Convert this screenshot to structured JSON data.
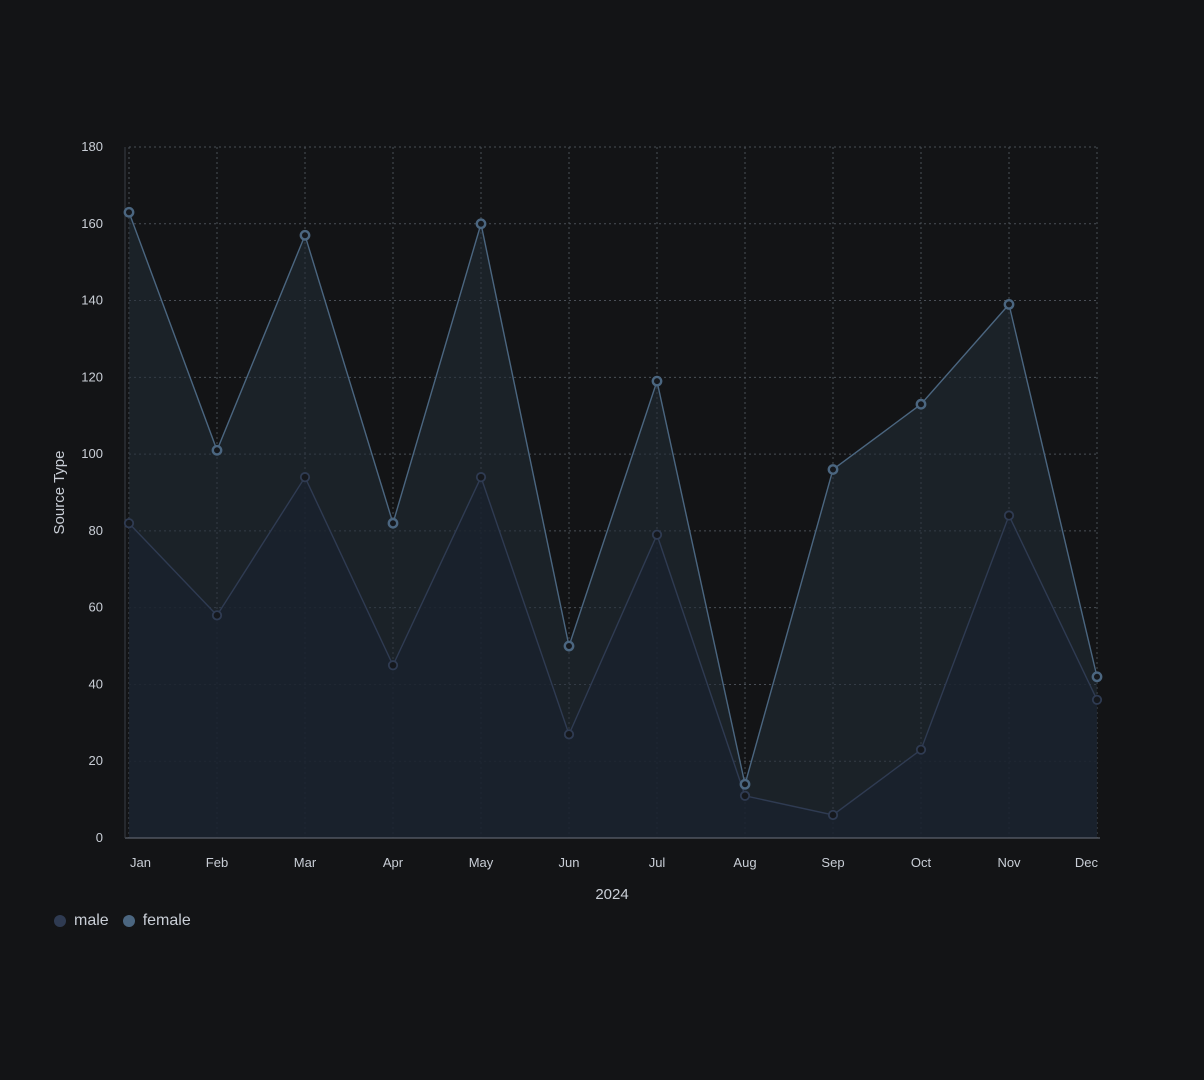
{
  "chart_data": {
    "type": "area",
    "title": "",
    "xlabel": "2024",
    "ylabel": "Source Type",
    "categories": [
      "Jan",
      "Feb",
      "Mar",
      "Apr",
      "May",
      "Jun",
      "Jul",
      "Aug",
      "Sep",
      "Oct",
      "Nov",
      "Dec"
    ],
    "ylim": [
      0,
      180
    ],
    "yticks": [
      0,
      20,
      40,
      60,
      80,
      100,
      120,
      140,
      160,
      180
    ],
    "grid": true,
    "stacked": false,
    "legend_position": "bottom-left",
    "series": [
      {
        "name": "male",
        "values": [
          82,
          58,
          94,
          45,
          94,
          27,
          79,
          11,
          6,
          23,
          84,
          36
        ],
        "color": "#2f3b52"
      },
      {
        "name": "female",
        "values": [
          163,
          101,
          157,
          82,
          160,
          50,
          119,
          14,
          96,
          113,
          139,
          42
        ],
        "color": "#4b6680"
      }
    ]
  }
}
